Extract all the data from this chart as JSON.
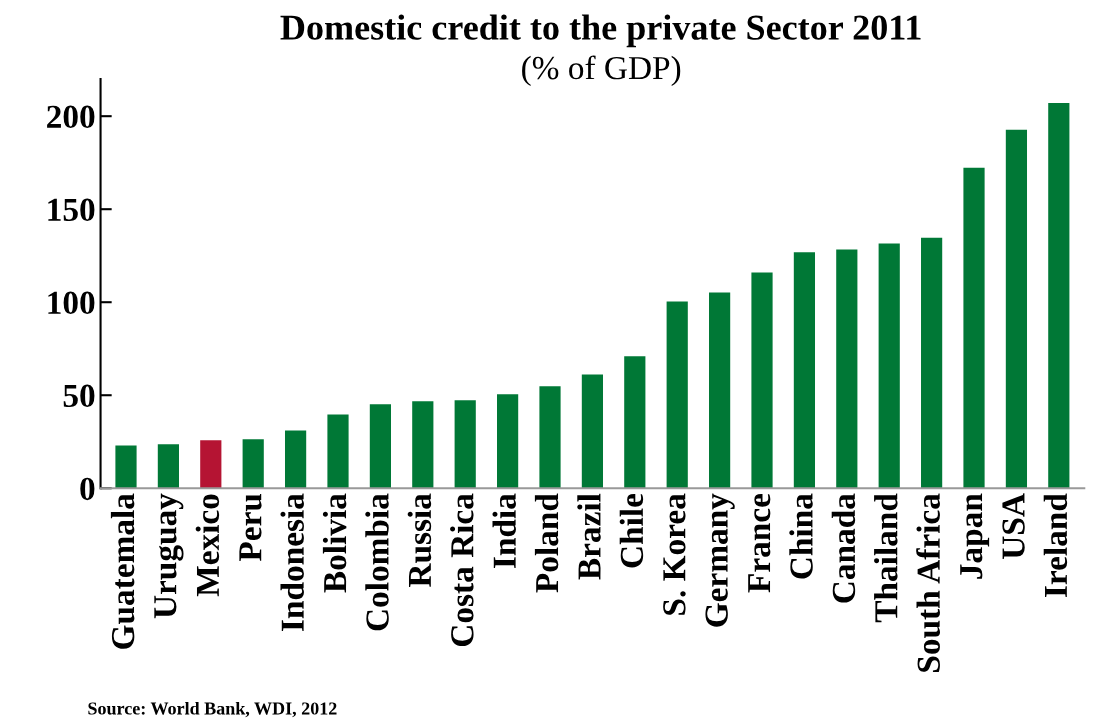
{
  "chart_data": {
    "type": "bar",
    "title": "Domestic credit to the private Sector 2011",
    "subtitle": "(% of GDP)",
    "categories": [
      "Guatemala",
      "Uruguay",
      "Mexico",
      "Peru",
      "Indonesia",
      "Bolivia",
      "Colombia",
      "Russia",
      "Costa Rica",
      "India",
      "Poland",
      "Brazil",
      "Chile",
      "S. Korea",
      "Germany",
      "France",
      "China",
      "Canada",
      "Thailand",
      "South Africa",
      "Japan",
      "USA",
      "Ireland"
    ],
    "values": [
      23.0,
      23.6,
      25.8,
      26.4,
      31.1,
      39.6,
      45.1,
      46.7,
      47.3,
      50.5,
      54.8,
      61.2,
      70.9,
      100.4,
      105.2,
      116.0,
      126.8,
      128.3,
      131.5,
      134.7,
      172.3,
      192.7,
      207.1
    ],
    "colors": [
      "#007836",
      "#007836",
      "#b51433",
      "#007836",
      "#007836",
      "#007836",
      "#007836",
      "#007836",
      "#007836",
      "#007836",
      "#007836",
      "#007836",
      "#007836",
      "#007836",
      "#007836",
      "#007836",
      "#007836",
      "#007836",
      "#007836",
      "#007836",
      "#007836",
      "#007836",
      "#007836"
    ],
    "ylim": [
      0,
      220
    ],
    "yticks": [
      0,
      50,
      100,
      150,
      200
    ],
    "grid": false,
    "legend": false,
    "annotations": [
      "Source: World Bank, WDI, 2012"
    ]
  }
}
